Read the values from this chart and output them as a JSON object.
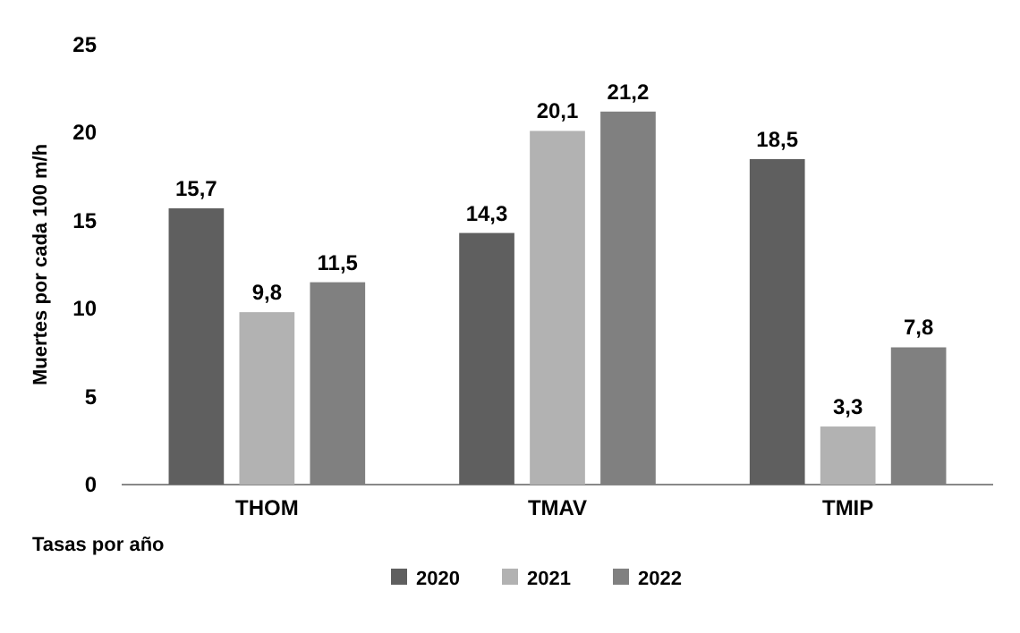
{
  "chart_data": {
    "type": "bar",
    "xlabel": "Tasas por año",
    "ylabel": "Muertes por cada 100 m/h",
    "categories": [
      "THOM",
      "TMAV",
      "TMIP"
    ],
    "series": [
      {
        "name": "2020",
        "color": "#5f5f5f",
        "values": [
          15.7,
          14.3,
          18.5
        ],
        "value_labels": [
          "15,7",
          "14,3",
          "18,5"
        ]
      },
      {
        "name": "2021",
        "color": "#b2b2b2",
        "values": [
          9.8,
          20.1,
          3.3
        ],
        "value_labels": [
          "9,8",
          "20,1",
          "3,3"
        ]
      },
      {
        "name": "2022",
        "color": "#808080",
        "values": [
          11.5,
          21.2,
          7.8
        ],
        "value_labels": [
          "11,5",
          "21,2",
          "7,8"
        ]
      }
    ],
    "ylim": [
      0,
      25
    ],
    "yticks": [
      0,
      5,
      10,
      15,
      20,
      25
    ],
    "grid": false,
    "legend": "bottom"
  }
}
